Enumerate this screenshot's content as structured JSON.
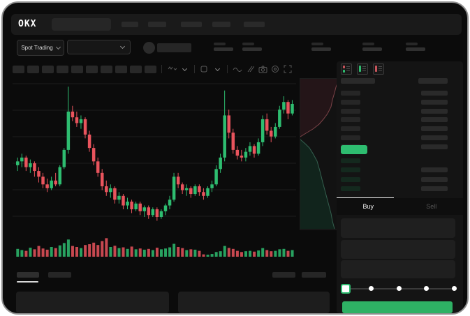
{
  "app": {
    "logo": "OKX"
  },
  "colors": {
    "green": "#2ebd70",
    "red": "#e9545d",
    "buy_button": "#2eb164",
    "last_price_bg": "#2ebd70",
    "ask_fill": "#241518",
    "ask_line": "#7c4348",
    "bid_fill": "#11241c",
    "bid_line": "#34604f",
    "bid_row_bg": "#14291e",
    "skeleton": "#2a2a2a",
    "grid": "#1c1c1c"
  },
  "navbar": {
    "logo": "OKX",
    "search_skeleton_width": 85,
    "item_widths": [
      24,
      26,
      30,
      26,
      30
    ],
    "item_x": [
      170,
      208,
      255,
      300,
      345
    ]
  },
  "market_bar": {
    "selector_label": "Spot Trading",
    "stat_pair_x": [
      302,
      343,
      442,
      515,
      577
    ]
  },
  "toolbar": {
    "block_count": 10,
    "icons": [
      "candle-style-icon",
      "interval-chevron-icon",
      "indicators-icon",
      "line-style-icon",
      "compare-icon",
      "snapshot-icon",
      "settings-icon",
      "fullscreen-icon"
    ]
  },
  "orderbook": {
    "view_icons": [
      "orderbook-split-view-icon",
      "orderbook-bids-view-icon",
      "orderbook-asks-view-icon"
    ],
    "ask_row_count": 7,
    "bid_row_count": 4,
    "bid_right_rows": [
      1,
      2,
      3
    ],
    "header": true
  },
  "trade_panel": {
    "buy_label": "Buy",
    "sell_label": "Sell",
    "input_count": 3,
    "slider_steps": 5,
    "slider_selected_index": 0
  },
  "chart_data": {
    "type": "candlestick",
    "title": "",
    "xlabel": "",
    "ylabel": "",
    "note": "no axis labels visible; relative price scale 0-100",
    "ylim": [
      25,
      100
    ],
    "grid": true,
    "candles_ohlcv": [
      [
        56,
        60,
        53,
        58,
        40
      ],
      [
        58,
        62,
        55,
        60,
        34
      ],
      [
        60,
        61,
        53,
        55,
        30
      ],
      [
        55,
        59,
        52,
        57,
        46
      ],
      [
        57,
        58,
        50,
        53,
        38
      ],
      [
        53,
        55,
        47,
        50,
        55
      ],
      [
        50,
        52,
        44,
        46,
        42
      ],
      [
        46,
        49,
        42,
        44,
        36
      ],
      [
        44,
        50,
        43,
        48,
        50
      ],
      [
        48,
        52,
        45,
        46,
        44
      ],
      [
        46,
        56,
        45,
        55,
        58
      ],
      [
        55,
        65,
        54,
        64,
        70
      ],
      [
        64,
        97,
        62,
        84,
        88
      ],
      [
        84,
        87,
        79,
        81,
        55
      ],
      [
        81,
        84,
        76,
        78,
        50
      ],
      [
        78,
        82,
        75,
        80,
        44
      ],
      [
        80,
        81,
        70,
        72,
        60
      ],
      [
        72,
        74,
        63,
        65,
        64
      ],
      [
        65,
        67,
        56,
        58,
        72
      ],
      [
        58,
        60,
        50,
        52,
        60
      ],
      [
        52,
        54,
        43,
        45,
        80
      ],
      [
        45,
        48,
        40,
        42,
        95
      ],
      [
        42,
        46,
        39,
        44,
        50
      ],
      [
        44,
        45,
        36,
        38,
        56
      ],
      [
        38,
        42,
        36,
        40,
        44
      ],
      [
        40,
        41,
        33,
        35,
        48
      ],
      [
        35,
        39,
        33,
        37,
        40
      ],
      [
        37,
        38,
        31,
        33,
        52
      ],
      [
        33,
        37,
        32,
        36,
        38
      ],
      [
        36,
        37,
        30,
        32,
        42
      ],
      [
        32,
        35,
        29,
        34,
        36
      ],
      [
        34,
        35,
        28,
        30,
        40
      ],
      [
        30,
        34,
        29,
        33,
        34
      ],
      [
        33,
        34,
        27,
        29,
        46
      ],
      [
        29,
        33,
        28,
        32,
        38
      ],
      [
        32,
        36,
        30,
        35,
        42
      ],
      [
        35,
        40,
        33,
        38,
        48
      ],
      [
        38,
        52,
        37,
        50,
        66
      ],
      [
        50,
        52,
        44,
        46,
        50
      ],
      [
        46,
        47,
        41,
        43,
        44
      ],
      [
        43,
        46,
        40,
        44,
        34
      ],
      [
        44,
        45,
        39,
        41,
        38
      ],
      [
        41,
        46,
        40,
        45,
        36
      ],
      [
        45,
        46,
        40,
        42,
        30
      ],
      [
        42,
        44,
        38,
        40,
        12
      ],
      [
        40,
        45,
        39,
        44,
        10
      ],
      [
        44,
        48,
        42,
        46,
        14
      ],
      [
        46,
        56,
        45,
        54,
        24
      ],
      [
        54,
        62,
        52,
        60,
        28
      ],
      [
        60,
        95,
        58,
        82,
        55
      ],
      [
        82,
        85,
        70,
        73,
        45
      ],
      [
        73,
        75,
        62,
        64,
        40
      ],
      [
        64,
        66,
        59,
        61,
        30
      ],
      [
        61,
        64,
        58,
        60,
        24
      ],
      [
        60,
        65,
        58,
        63,
        28
      ],
      [
        63,
        68,
        61,
        66,
        30
      ],
      [
        66,
        67,
        60,
        62,
        26
      ],
      [
        62,
        70,
        61,
        68,
        32
      ],
      [
        68,
        82,
        66,
        80,
        44
      ],
      [
        80,
        83,
        72,
        74,
        34
      ],
      [
        74,
        76,
        68,
        71,
        28
      ],
      [
        71,
        78,
        70,
        76,
        30
      ],
      [
        76,
        87,
        75,
        85,
        38
      ],
      [
        85,
        92,
        83,
        89,
        40
      ],
      [
        89,
        90,
        80,
        83,
        30
      ],
      [
        83,
        90,
        82,
        88,
        34
      ]
    ],
    "depth": {
      "orientation": "vertical",
      "ask_line": [
        [
          54,
          4
        ],
        [
          51,
          12
        ],
        [
          49,
          20
        ],
        [
          46,
          30
        ],
        [
          44,
          40
        ],
        [
          39,
          50
        ],
        [
          33,
          58
        ],
        [
          27,
          65
        ],
        [
          18,
          72
        ],
        [
          8,
          78
        ],
        [
          0,
          83
        ]
      ],
      "bid_line": [
        [
          0,
          87
        ],
        [
          7,
          93
        ],
        [
          13,
          99
        ],
        [
          18,
          107
        ],
        [
          24,
          118
        ],
        [
          28,
          132
        ],
        [
          32,
          148
        ],
        [
          36,
          163
        ],
        [
          40,
          178
        ],
        [
          44,
          193
        ],
        [
          46,
          204
        ],
        [
          49,
          215
        ]
      ]
    }
  }
}
